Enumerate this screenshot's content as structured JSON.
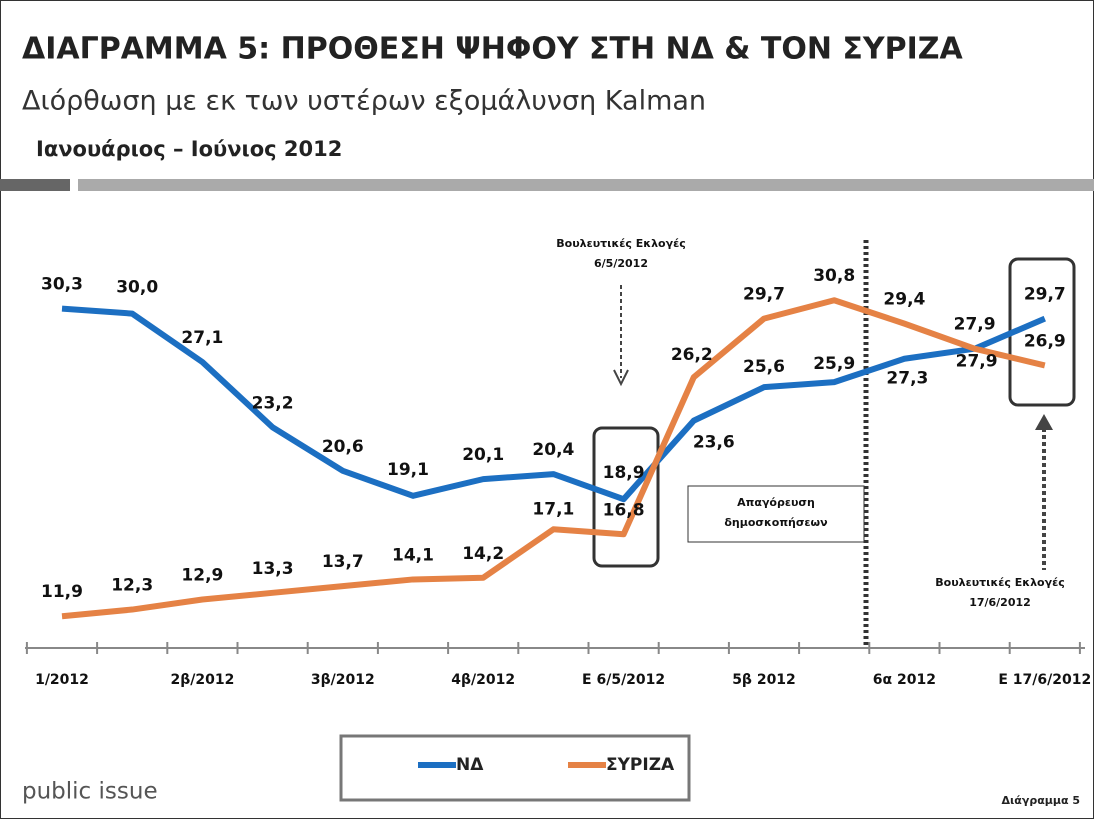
{
  "header": {
    "title": "ΔΙΑΓΡΑΜΜΑ 5: ΠΡΟΘΕΣΗ ΨΗΦΟΥ ΣΤΗ ΝΔ & ΤΟΝ ΣΥΡΙΖΑ",
    "subtitle": "Διόρθωση με εκ των υστέρων εξομάλυνση Kalman",
    "period": "Ιανουάριος – Ιούνιος 2012"
  },
  "chart_data": {
    "type": "line",
    "categories": [
      "1/2012",
      null,
      "2β/2012",
      null,
      "3β/2012",
      null,
      "4β/2012",
      null,
      "Ε 6/5/2012",
      null,
      "5β 2012",
      null,
      "6α 2012",
      null,
      "Ε 17/6/2012"
    ],
    "series": [
      {
        "name": "ΝΔ",
        "color": "#1c6fc2",
        "values": [
          30.3,
          30.0,
          27.1,
          23.2,
          20.6,
          19.1,
          20.1,
          20.4,
          18.9,
          23.6,
          25.6,
          25.9,
          27.3,
          27.9,
          29.7
        ],
        "value_labels": [
          "30,3",
          "30,0",
          "27,1",
          "23,2",
          "20,6",
          "19,1",
          "20,1",
          "20,4",
          "18,9",
          "23,6",
          "25,6",
          "25,9",
          "27,3",
          "27,9",
          "29,7"
        ]
      },
      {
        "name": "ΣΥΡΙΖΑ",
        "color": "#e58245",
        "values": [
          11.9,
          12.3,
          12.9,
          13.3,
          13.7,
          14.1,
          14.2,
          17.1,
          16.8,
          26.2,
          29.7,
          30.8,
          29.4,
          27.9,
          26.9
        ],
        "value_labels": [
          "11,9",
          "12,3",
          "12,9",
          "13,3",
          "13,7",
          "14,1",
          "14,2",
          "17,1",
          "16,8",
          "26,2",
          "29,7",
          "30,8",
          "29,4",
          "27,9",
          "26,9"
        ]
      }
    ],
    "ylim": [
      10,
      35
    ],
    "annotations": [
      [
        "Βουλευτικές Εκλογές",
        "6/5/2012"
      ],
      [
        "Απαγόρευση",
        "δημοσκοπήσεων"
      ],
      [
        "Βουλευτικές Εκλογές",
        "17/6/2012"
      ]
    ]
  },
  "footer": {
    "brand": "public issue",
    "label": "Διάγραμμα 5"
  }
}
